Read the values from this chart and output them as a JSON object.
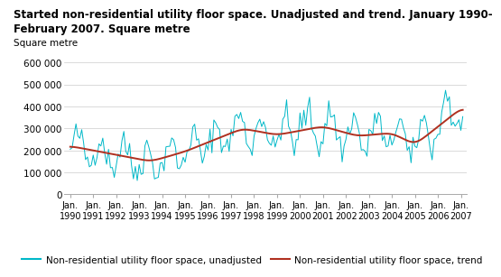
{
  "title_line1": "Started non-residential utility floor space. Unadjusted and trend. January 1990-",
  "title_line2": "February 2007. Square metre",
  "ylabel": "Square metre",
  "ylim": [
    0,
    650000
  ],
  "yticks": [
    0,
    100000,
    200000,
    300000,
    400000,
    500000,
    600000
  ],
  "ytick_labels": [
    "0",
    "100 000",
    "200 000",
    "300 000",
    "400 000",
    "500 000",
    "600 000"
  ],
  "unadjusted_color": "#00b8c8",
  "trend_color": "#b03020",
  "unadjusted_label": "Non-residential utility floor space, unadjusted",
  "trend_label": "Non-residential utility floor space, trend",
  "background_color": "#ffffff",
  "grid_color": "#cccccc",
  "title_fontsize": 8.5,
  "legend_fontsize": 7.5,
  "axis_fontsize": 7.5,
  "ylabel_fontsize": 7.5
}
